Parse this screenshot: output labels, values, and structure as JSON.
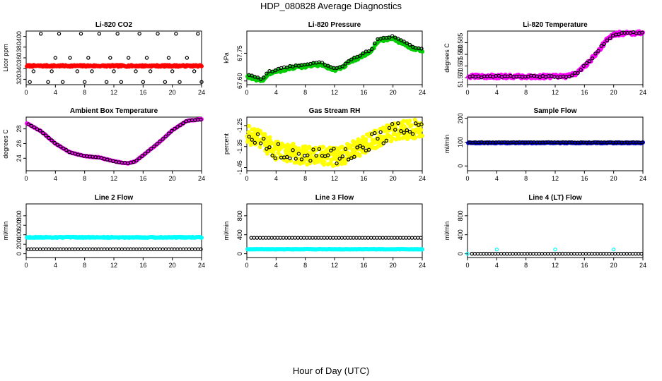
{
  "figure": {
    "title": "HDP_080828  Average Diagnostics",
    "xlabel": "Hour of Day (UTC)"
  },
  "chart_data": [
    {
      "type": "scatter",
      "title": "Li-820 CO2",
      "ylabel": "Licor ppm",
      "xlim": [
        0,
        24
      ],
      "ylim": [
        310,
        410
      ],
      "xticks": [
        0,
        4,
        8,
        12,
        16,
        20,
        24
      ],
      "yticks": [
        {
          "v": 320,
          "label": "320"
        },
        {
          "v": 340,
          "label": "340"
        },
        {
          "v": 360,
          "label": "360"
        },
        {
          "v": 380,
          "label": "380"
        },
        {
          "v": 400,
          "label": "400"
        }
      ],
      "series": [
        {
          "name": "Line 1 (red)",
          "color": "#ff0000",
          "filled": true,
          "kind": "const",
          "value": 345,
          "noise": 1.5,
          "from": 0.1,
          "to": 24,
          "step": 0.1
        },
        {
          "name": "Line 2 (black)",
          "color": "#000000",
          "filled": false,
          "kind": "list",
          "x": [
            0.5,
            1,
            2,
            3,
            3.5,
            4,
            4.5,
            5,
            6,
            7,
            7.5,
            8,
            8.5,
            9,
            10,
            11,
            11.5,
            12,
            12.5,
            13,
            14,
            15,
            15.5,
            16,
            16.5,
            17,
            18,
            19,
            19.5,
            20,
            20.5,
            21,
            22,
            23,
            23.5,
            24
          ],
          "y": [
            315,
            335,
            405,
            315,
            335,
            360,
            405,
            315,
            360,
            335,
            405,
            315,
            360,
            335,
            405,
            315,
            360,
            335,
            405,
            315,
            360,
            335,
            405,
            315,
            360,
            335,
            405,
            315,
            360,
            335,
            405,
            315,
            360,
            335,
            405,
            315
          ]
        }
      ]
    },
    {
      "type": "scatter",
      "title": "Li-820 Pressure",
      "ylabel": "kPa",
      "xlim": [
        0,
        24
      ],
      "ylim": [
        67.58,
        67.87
      ],
      "xticks": [
        0,
        4,
        8,
        12,
        16,
        20,
        24
      ],
      "yticks": [
        {
          "v": 67.6,
          "label": "67.60"
        },
        {
          "v": 67.75,
          "label": "67.75"
        }
      ],
      "series": [
        {
          "name": "Line 1 (green)",
          "color": "#00cc00",
          "filled": true,
          "kind": "path",
          "xs": [
            0,
            1,
            2,
            3,
            4,
            6,
            8,
            10,
            12,
            13,
            14,
            15,
            16,
            17,
            18,
            20,
            21,
            22,
            23,
            24
          ],
          "ys": [
            67.63,
            67.61,
            67.6,
            67.64,
            67.65,
            67.67,
            67.68,
            67.69,
            67.66,
            67.67,
            67.7,
            67.72,
            67.74,
            67.76,
            67.82,
            67.83,
            67.81,
            67.79,
            67.77,
            67.76
          ],
          "noise": 0.008,
          "from": 0.1,
          "to": 24,
          "step": 0.1
        },
        {
          "name": "Line 2 (black)",
          "color": "#000000",
          "filled": false,
          "kind": "path",
          "xs": [
            0,
            1,
            2,
            3,
            4,
            6,
            8,
            10,
            12,
            13,
            14,
            15,
            16,
            17,
            18,
            20,
            21,
            22,
            23,
            24
          ],
          "ys": [
            67.64,
            67.62,
            67.61,
            67.65,
            67.66,
            67.68,
            67.69,
            67.7,
            67.67,
            67.68,
            67.71,
            67.73,
            67.75,
            67.77,
            67.83,
            67.84,
            67.82,
            67.8,
            67.78,
            67.77
          ],
          "noise": 0.004,
          "from": 0.3,
          "to": 24,
          "step": 0.4
        }
      ]
    },
    {
      "type": "scatter",
      "title": "Li-820 Temperature",
      "ylabel": "degrees C",
      "xlim": [
        0,
        24
      ],
      "ylim": [
        51.567,
        51.59
      ],
      "xticks": [
        0,
        4,
        8,
        12,
        16,
        20,
        24
      ],
      "yticks": [
        {
          "v": 51.57,
          "label": "51.570"
        },
        {
          "v": 51.575,
          "label": "51.575"
        },
        {
          "v": 51.58,
          "label": "51.580"
        },
        {
          "v": 51.585,
          "label": "51.585"
        }
      ],
      "series": [
        {
          "name": "Line 1 (magenta)",
          "color": "#ff00ff",
          "filled": true,
          "kind": "path",
          "xs": [
            0,
            13.5,
            15,
            16,
            17,
            18,
            19,
            20,
            21,
            24
          ],
          "ys": [
            51.5705,
            51.5705,
            51.572,
            51.575,
            51.578,
            51.582,
            51.586,
            51.5885,
            51.589,
            51.5893
          ],
          "noise": 0.0008,
          "from": 0.1,
          "to": 24,
          "step": 0.1
        },
        {
          "name": "Line 2 (black)",
          "color": "#000000",
          "filled": false,
          "kind": "path",
          "xs": [
            0,
            13.5,
            15,
            16,
            17,
            18,
            19,
            20,
            21,
            24
          ],
          "ys": [
            51.5705,
            51.5705,
            51.572,
            51.575,
            51.578,
            51.582,
            51.586,
            51.5885,
            51.589,
            51.5893
          ],
          "noise": 0.0004,
          "from": 0.3,
          "to": 24,
          "step": 0.4
        }
      ]
    },
    {
      "type": "scatter",
      "title": "Ambient Box Temperature",
      "ylabel": "degrees C",
      "xlim": [
        0,
        24
      ],
      "ylim": [
        22.3,
        29.6
      ],
      "xticks": [
        0,
        4,
        8,
        12,
        16,
        20,
        24
      ],
      "yticks": [
        {
          "v": 24,
          "label": "24"
        },
        {
          "v": 26,
          "label": "26"
        },
        {
          "v": 28,
          "label": "28"
        }
      ],
      "series": [
        {
          "name": "Line 1 (magenta)",
          "color": "#ff00ff",
          "filled": true,
          "kind": "path",
          "xs": [
            0,
            2,
            4,
            6,
            8,
            10,
            12,
            13,
            14,
            15,
            16,
            18,
            20,
            22,
            24
          ],
          "ys": [
            28.8,
            27.7,
            26,
            24.8,
            24.3,
            24.1,
            23.6,
            23.4,
            23.3,
            23.6,
            24.4,
            26,
            27.8,
            29.1,
            29.3
          ],
          "noise": 0.04,
          "from": 0.1,
          "to": 24,
          "step": 0.1
        },
        {
          "name": "Line 2 (black)",
          "color": "#000000",
          "filled": false,
          "kind": "path",
          "xs": [
            0,
            2,
            4,
            6,
            8,
            10,
            12,
            13,
            14,
            15,
            16,
            18,
            20,
            22,
            24
          ],
          "ys": [
            28.8,
            27.7,
            26,
            24.8,
            24.3,
            24.1,
            23.6,
            23.4,
            23.3,
            23.6,
            24.4,
            26,
            27.8,
            29.1,
            29.3
          ],
          "noise": 0.02,
          "from": 0.3,
          "to": 24,
          "step": 0.4
        }
      ]
    },
    {
      "type": "scatter",
      "title": "Gas Stream RH",
      "ylabel": "percent",
      "xlim": [
        0,
        24
      ],
      "ylim": [
        -1.465,
        -1.21
      ],
      "xticks": [
        0,
        4,
        8,
        12,
        16,
        20,
        24
      ],
      "yticks": [
        {
          "v": -1.45,
          "label": "-1.45"
        },
        {
          "v": -1.35,
          "label": "-1.35"
        },
        {
          "v": -1.25,
          "label": "-1.25"
        }
      ],
      "series": [
        {
          "name": "Line 1 (yellow)",
          "color": "#ffff00",
          "filled": true,
          "kind": "path",
          "xs": [
            0,
            2,
            4,
            8,
            12,
            14,
            16,
            18,
            20,
            24
          ],
          "ys": [
            -1.29,
            -1.32,
            -1.37,
            -1.39,
            -1.4,
            -1.38,
            -1.34,
            -1.31,
            -1.28,
            -1.26
          ],
          "noise": 0.045,
          "from": 0.05,
          "to": 24,
          "step": 0.05
        },
        {
          "name": "Line 2 (black)",
          "color": "#000000",
          "filled": false,
          "kind": "path",
          "xs": [
            0,
            2,
            4,
            8,
            12,
            14,
            16,
            18,
            20,
            24
          ],
          "ys": [
            -1.29,
            -1.32,
            -1.37,
            -1.39,
            -1.4,
            -1.38,
            -1.34,
            -1.31,
            -1.28,
            -1.26
          ],
          "noise": 0.04,
          "from": 0.3,
          "to": 24,
          "step": 0.4
        }
      ]
    },
    {
      "type": "scatter",
      "title": "Sample Flow",
      "ylabel": "ml/min",
      "xlim": [
        0,
        24
      ],
      "ylim": [
        -20,
        205
      ],
      "xticks": [
        0,
        4,
        8,
        12,
        16,
        20,
        24
      ],
      "yticks": [
        {
          "v": 0,
          "label": "0"
        },
        {
          "v": 100,
          "label": "100"
        },
        {
          "v": 200,
          "label": "200"
        }
      ],
      "series": [
        {
          "name": "Line 1 (blue)",
          "color": "#0000cc",
          "filled": true,
          "kind": "const",
          "value": 97,
          "noise": 2,
          "from": 0.1,
          "to": 24,
          "step": 0.1
        },
        {
          "name": "Line 2 (black)",
          "color": "#000000",
          "filled": false,
          "kind": "const",
          "value": 99,
          "noise": 1,
          "from": 0.3,
          "to": 24,
          "step": 0.4
        }
      ]
    },
    {
      "type": "scatter",
      "title": "Line 2 Flow",
      "ylabel": "ml/min",
      "xlim": [
        0,
        24
      ],
      "ylim": [
        -80,
        1050
      ],
      "xticks": [
        0,
        4,
        8,
        12,
        16,
        20,
        24
      ],
      "yticks": [
        {
          "v": 0,
          "label": "0"
        },
        {
          "v": 200,
          "label": "200"
        },
        {
          "v": 400,
          "label": "400"
        },
        {
          "v": 600,
          "label": "600"
        },
        {
          "v": 800,
          "label": "800"
        }
      ],
      "series": [
        {
          "name": "Line 1 (cyan)",
          "color": "#00ffff",
          "filled": true,
          "kind": "const",
          "value": 345,
          "noise": 8,
          "from": 0.1,
          "to": 24,
          "step": 0.1
        },
        {
          "name": "Line 2 (black)",
          "color": "#000000",
          "filled": false,
          "kind": "const",
          "value": 95,
          "noise": 0,
          "from": 0.3,
          "to": 24,
          "step": 0.4
        }
      ]
    },
    {
      "type": "scatter",
      "title": "Line 3 Flow",
      "ylabel": "ml/min",
      "xlim": [
        0,
        24
      ],
      "ylim": [
        -80,
        1050
      ],
      "xticks": [
        0,
        4,
        8,
        12,
        16,
        20,
        24
      ],
      "yticks": [
        {
          "v": 0,
          "label": "0"
        },
        {
          "v": 400,
          "label": "400"
        },
        {
          "v": 800,
          "label": "800"
        }
      ],
      "series": [
        {
          "name": "Line 1 (cyan)",
          "color": "#00ffff",
          "filled": true,
          "kind": "const",
          "value": 95,
          "noise": 4,
          "from": 0.1,
          "to": 24,
          "step": 0.1
        },
        {
          "name": "Line 2 (black)",
          "color": "#000000",
          "filled": false,
          "kind": "const",
          "value": 335,
          "noise": 0,
          "from": 0.6,
          "to": 24,
          "step": 0.4
        }
      ]
    },
    {
      "type": "scatter",
      "title": "Line 4 (LT) Flow",
      "ylabel": "ml/min",
      "xlim": [
        0,
        24
      ],
      "ylim": [
        -80,
        1050
      ],
      "xticks": [
        0,
        4,
        8,
        12,
        16,
        20,
        24
      ],
      "yticks": [
        {
          "v": 0,
          "label": "0"
        },
        {
          "v": 400,
          "label": "400"
        },
        {
          "v": 800,
          "label": "800"
        }
      ],
      "series": [
        {
          "name": "Line 1 (cyan)",
          "color": "#00ffff",
          "filled": false,
          "kind": "list",
          "x": [
            0,
            4,
            12,
            20
          ],
          "y": [
            0,
            90,
            90,
            90
          ]
        },
        {
          "name": "Line 2 (black)",
          "color": "#000000",
          "filled": false,
          "kind": "const",
          "value": 0,
          "noise": 0,
          "from": 0.6,
          "to": 24,
          "step": 0.4
        }
      ]
    }
  ]
}
